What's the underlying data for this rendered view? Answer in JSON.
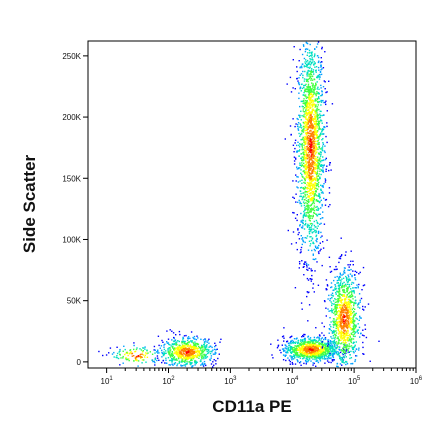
{
  "chart_data": {
    "type": "scatter",
    "style": "density-colored flow cytometry dot plot",
    "xlabel": "CD11a PE",
    "ylabel": "Side Scatter",
    "x_scale": "log",
    "xlim": [
      5,
      1000000
    ],
    "ylim": [
      -5000,
      262144
    ],
    "x_ticks": [
      {
        "value": 10,
        "base": "10",
        "exp": "1"
      },
      {
        "value": 100,
        "base": "10",
        "exp": "2"
      },
      {
        "value": 1000,
        "base": "10",
        "exp": "3"
      },
      {
        "value": 10000,
        "base": "10",
        "exp": "4"
      },
      {
        "value": 100000,
        "base": "10",
        "exp": "5"
      },
      {
        "value": 1000000,
        "base": "10",
        "exp": "6"
      }
    ],
    "y_ticks": [
      {
        "value": 0,
        "label": "0"
      },
      {
        "value": 50000,
        "label": "50K"
      },
      {
        "value": 100000,
        "label": "100K"
      },
      {
        "value": 150000,
        "label": "150K"
      },
      {
        "value": 200000,
        "label": "200K"
      },
      {
        "value": 250000,
        "label": "250K"
      }
    ],
    "density_colors": [
      "#0000ff",
      "#00a0ff",
      "#00e0c0",
      "#40ff40",
      "#ffff00",
      "#ff8000",
      "#ff0000"
    ],
    "populations": [
      {
        "center_x": 20000,
        "center_y": 175000,
        "spread_log_x": 0.11,
        "spread_y": 45000,
        "count": 1900
      },
      {
        "center_x": 20000,
        "center_y": 10000,
        "spread_log_x": 0.22,
        "spread_y": 5000,
        "count": 900
      },
      {
        "center_x": 70000,
        "center_y": 35000,
        "spread_log_x": 0.13,
        "spread_y": 20000,
        "count": 1000
      },
      {
        "center_x": 200,
        "center_y": 8000,
        "spread_log_x": 0.22,
        "spread_y": 6000,
        "count": 700
      },
      {
        "center_x": 30,
        "center_y": 5000,
        "spread_log_x": 0.2,
        "spread_y": 4000,
        "count": 120
      }
    ],
    "grid": false,
    "legend": "none"
  }
}
